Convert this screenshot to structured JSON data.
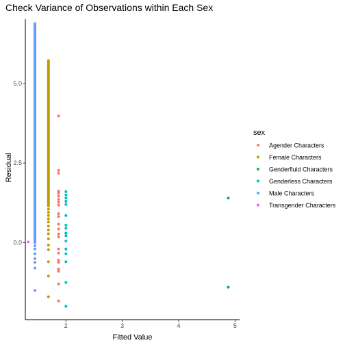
{
  "chart_data": {
    "type": "scatter",
    "title": "Check Variance of Observations within Each Sex",
    "xlabel": "Fitted Value",
    "ylabel": "Residual",
    "xlim": [
      1.28,
      5.08
    ],
    "ylim": [
      -2.42,
      7.02
    ],
    "x_ticks": [
      2,
      3,
      4,
      5
    ],
    "y_ticks": [
      0.0,
      2.5,
      5.0
    ],
    "y_tick_labels": [
      "0.0",
      "2.5",
      "5.0"
    ],
    "grid": false,
    "legend_position": "right",
    "legend_title": "sex",
    "series": [
      {
        "name": "Agender Characters",
        "color": "#F8766D",
        "x": 1.87,
        "y": [
          3.98,
          2.27,
          2.18,
          1.62,
          1.55,
          1.46,
          1.36,
          1.27,
          1.18,
          0.91,
          0.82,
          0.58,
          0.43,
          0.27,
          0.18,
          -0.2,
          -0.33,
          -0.55,
          -0.62,
          -0.83,
          -0.9,
          -1.3,
          -1.83
        ]
      },
      {
        "name": "Female Characters",
        "color": "#B79F00",
        "x": 1.69,
        "y_dense_range": [
          1.2,
          5.72
        ],
        "y": [
          1.15,
          1.05,
          0.95,
          0.85,
          0.75,
          0.65,
          0.52,
          0.4,
          0.28,
          0.12,
          -0.08,
          -0.22,
          -0.6,
          -1.05,
          -1.7
        ]
      },
      {
        "name": "Genderfluid Characters",
        "color": "#00BA38",
        "x": 4.88,
        "y": [
          1.4,
          -1.4
        ]
      },
      {
        "name": "Genderless Characters",
        "color": "#00BFC4",
        "x": 2.0,
        "y": [
          1.6,
          1.5,
          1.4,
          1.3,
          1.2,
          0.85,
          0.55,
          0.45,
          0.3,
          0.22,
          0.05,
          -0.2,
          -0.35,
          -0.6,
          -1.25,
          -2.0
        ]
      },
      {
        "name": "Male Characters",
        "color": "#619CFF",
        "x": 1.45,
        "y_dense_range": [
          0.0,
          6.88
        ],
        "y": [
          -0.1,
          -0.2,
          -0.35,
          -0.5,
          -0.62,
          -0.8,
          -1.5
        ]
      },
      {
        "name": "Transgender Characters",
        "color": "#F564E3",
        "x": 1.33,
        "y": [
          0.02
        ]
      }
    ]
  }
}
